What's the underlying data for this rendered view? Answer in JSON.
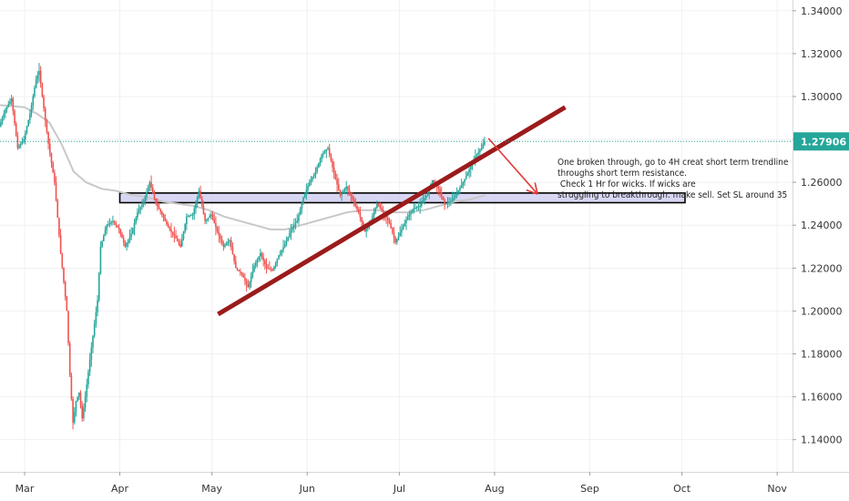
{
  "chart_data": {
    "type": "candlestick",
    "y_range": [
      1.125,
      1.345
    ],
    "y_ticks": [
      "1.34000",
      "1.32000",
      "1.30000",
      "1.28000",
      "1.26000",
      "1.24000",
      "1.22000",
      "1.20000",
      "1.18000",
      "1.16000",
      "1.14000"
    ],
    "y_tick_values": [
      1.34,
      1.32,
      1.3,
      1.28,
      1.26,
      1.24,
      1.22,
      1.2,
      1.18,
      1.16,
      1.14
    ],
    "x_ticks": [
      "Mar",
      "Apr",
      "May",
      "Jun",
      "Jul",
      "Aug",
      "Sep",
      "Oct",
      "Nov"
    ],
    "x_tick_days": [
      0,
      31,
      61,
      92,
      122,
      153,
      184,
      214,
      245
    ],
    "x_day_range": [
      -8,
      250
    ],
    "current_price": 1.27906,
    "current_price_label": "1.27906",
    "colors": {
      "up": "#26a69a",
      "down": "#ef5350",
      "ma": "#c8c8c8",
      "trendline": "#9b1b1b",
      "arrow": "#e53935",
      "zone_fill": "#c9c9f0",
      "zone_border": "#000000",
      "price": "#26a69a"
    },
    "price_path": [
      [
        -8,
        1.286
      ],
      [
        -6,
        1.294
      ],
      [
        -4,
        1.299
      ],
      [
        -2,
        1.276
      ],
      [
        0,
        1.28
      ],
      [
        2,
        1.292
      ],
      [
        4,
        1.308
      ],
      [
        5,
        1.312
      ],
      [
        6,
        1.3
      ],
      [
        8,
        1.278
      ],
      [
        10,
        1.26
      ],
      [
        12,
        1.227
      ],
      [
        14,
        1.2
      ],
      [
        15,
        1.17
      ],
      [
        16,
        1.148
      ],
      [
        17,
        1.158
      ],
      [
        18,
        1.162
      ],
      [
        19,
        1.15
      ],
      [
        20,
        1.16
      ],
      [
        22,
        1.183
      ],
      [
        24,
        1.205
      ],
      [
        25,
        1.23
      ],
      [
        27,
        1.24
      ],
      [
        29,
        1.242
      ],
      [
        31,
        1.238
      ],
      [
        33,
        1.23
      ],
      [
        35,
        1.236
      ],
      [
        37,
        1.246
      ],
      [
        39,
        1.251
      ],
      [
        41,
        1.26
      ],
      [
        43,
        1.25
      ],
      [
        45,
        1.245
      ],
      [
        47,
        1.239
      ],
      [
        49,
        1.235
      ],
      [
        51,
        1.23
      ],
      [
        53,
        1.244
      ],
      [
        55,
        1.245
      ],
      [
        57,
        1.256
      ],
      [
        59,
        1.242
      ],
      [
        61,
        1.245
      ],
      [
        63,
        1.237
      ],
      [
        65,
        1.23
      ],
      [
        67,
        1.233
      ],
      [
        69,
        1.22
      ],
      [
        71,
        1.217
      ],
      [
        73,
        1.211
      ],
      [
        75,
        1.221
      ],
      [
        77,
        1.227
      ],
      [
        79,
        1.22
      ],
      [
        81,
        1.219
      ],
      [
        83,
        1.226
      ],
      [
        85,
        1.231
      ],
      [
        87,
        1.238
      ],
      [
        89,
        1.242
      ],
      [
        91,
        1.253
      ],
      [
        93,
        1.26
      ],
      [
        95,
        1.265
      ],
      [
        97,
        1.273
      ],
      [
        99,
        1.276
      ],
      [
        101,
        1.264
      ],
      [
        103,
        1.254
      ],
      [
        105,
        1.258
      ],
      [
        107,
        1.252
      ],
      [
        109,
        1.246
      ],
      [
        111,
        1.237
      ],
      [
        113,
        1.242
      ],
      [
        115,
        1.25
      ],
      [
        117,
        1.246
      ],
      [
        119,
        1.241
      ],
      [
        121,
        1.232
      ],
      [
        123,
        1.238
      ],
      [
        125,
        1.244
      ],
      [
        127,
        1.248
      ],
      [
        129,
        1.249
      ],
      [
        131,
        1.254
      ],
      [
        133,
        1.261
      ],
      [
        135,
        1.257
      ],
      [
        137,
        1.25
      ],
      [
        139,
        1.251
      ],
      [
        141,
        1.255
      ],
      [
        143,
        1.26
      ],
      [
        145,
        1.266
      ],
      [
        147,
        1.272
      ],
      [
        149,
        1.276
      ],
      [
        150,
        1.2791
      ]
    ],
    "moving_average": [
      [
        -8,
        1.296
      ],
      [
        0,
        1.295
      ],
      [
        4,
        1.292
      ],
      [
        8,
        1.288
      ],
      [
        12,
        1.278
      ],
      [
        16,
        1.265
      ],
      [
        20,
        1.26
      ],
      [
        25,
        1.257
      ],
      [
        30,
        1.256
      ],
      [
        35,
        1.254
      ],
      [
        40,
        1.253
      ],
      [
        45,
        1.251
      ],
      [
        50,
        1.25
      ],
      [
        55,
        1.249
      ],
      [
        60,
        1.247
      ],
      [
        65,
        1.244
      ],
      [
        70,
        1.242
      ],
      [
        75,
        1.24
      ],
      [
        80,
        1.238
      ],
      [
        85,
        1.238
      ],
      [
        90,
        1.24
      ],
      [
        95,
        1.242
      ],
      [
        100,
        1.244
      ],
      [
        105,
        1.246
      ],
      [
        110,
        1.247
      ],
      [
        115,
        1.247
      ],
      [
        120,
        1.246
      ],
      [
        125,
        1.246
      ],
      [
        130,
        1.247
      ],
      [
        135,
        1.249
      ],
      [
        140,
        1.251
      ],
      [
        145,
        1.252
      ],
      [
        150,
        1.254
      ]
    ],
    "support_zone": {
      "from_day": 31,
      "to_day": 215,
      "top": 1.255,
      "bottom": 1.2505
    },
    "trendline": {
      "start": [
        63,
        1.1985
      ],
      "end": [
        176,
        1.295
      ]
    },
    "arrow": {
      "start": [
        151,
        1.2805
      ],
      "end": [
        167,
        1.2545
      ]
    }
  },
  "annotation": {
    "lines": [
      "One broken through, go to 4H creat short term trendline",
      "throughs short term resistance.",
      " Check 1 Hr for wicks. If wicks are",
      "struggling to breakthrough. make sell. Set SL around 35"
    ]
  }
}
